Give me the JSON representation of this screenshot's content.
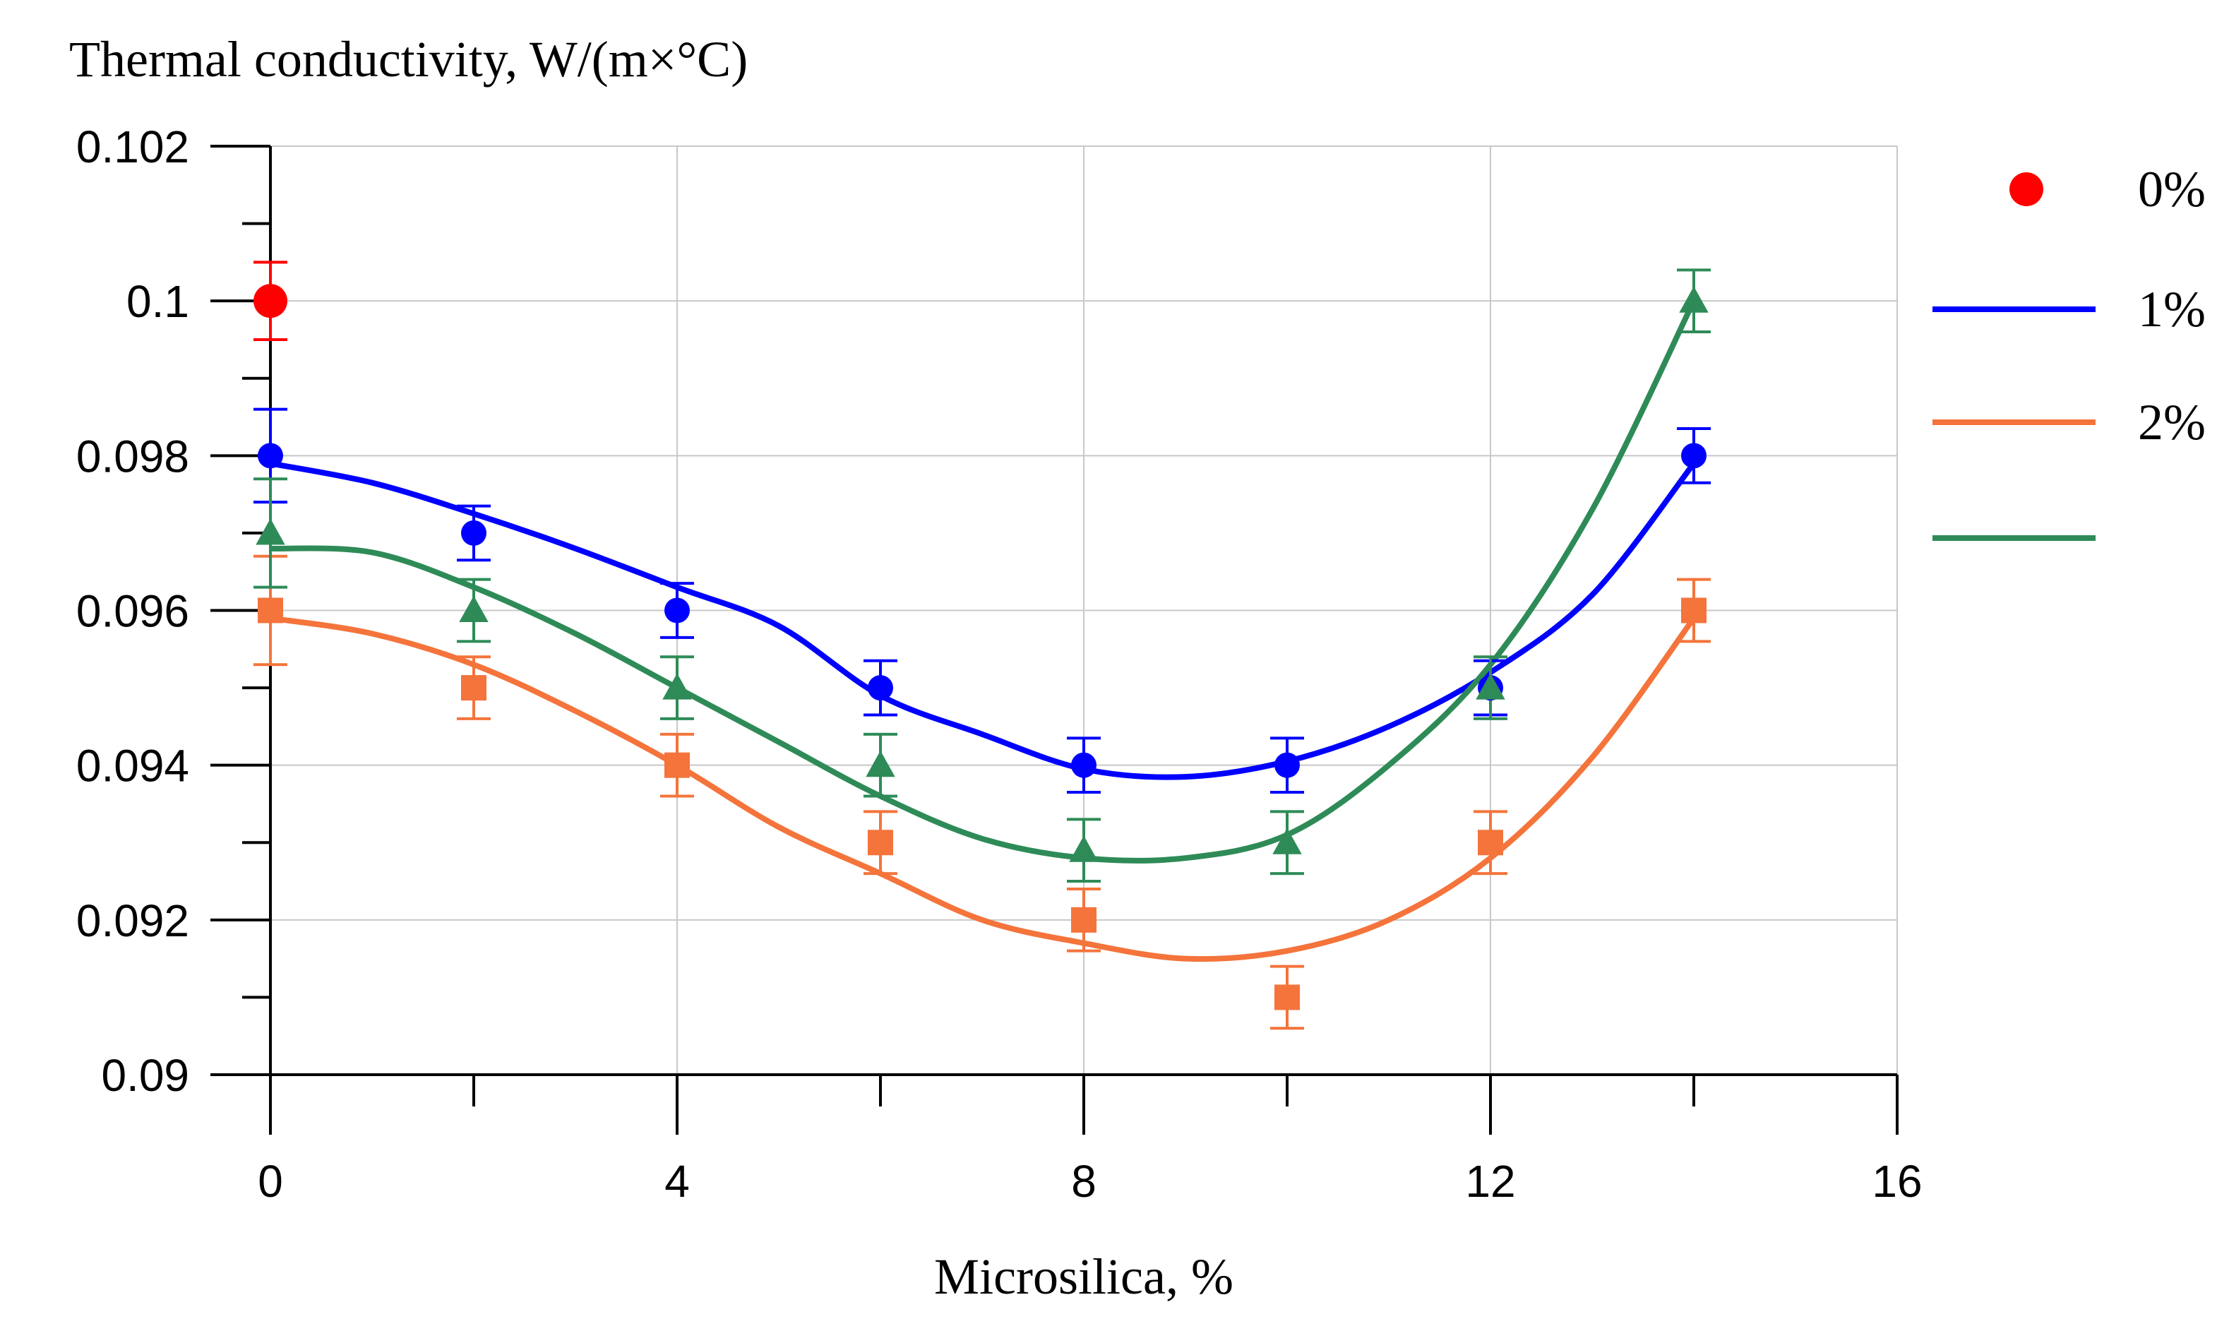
{
  "chart_data": {
    "type": "line",
    "ylabel": "Thermal conductivity, W/(m×°C)",
    "xlabel": "Microsilica, %",
    "xlim": [
      0,
      16
    ],
    "ylim": [
      0.09,
      0.102
    ],
    "x_ticks": [
      0,
      4,
      8,
      12,
      16
    ],
    "x_tick_labels": [
      "0",
      "4",
      "8",
      "12",
      "16"
    ],
    "x_minor_ticks": [
      2,
      6,
      10,
      14
    ],
    "y_ticks": [
      0.09,
      0.092,
      0.094,
      0.096,
      0.098,
      0.1,
      0.102
    ],
    "y_tick_labels": [
      "0.09",
      "0.092",
      "0.094",
      "0.096",
      "0.098",
      "0.1",
      "0.102"
    ],
    "y_minor_ticks": [
      0.091,
      0.093,
      0.095,
      0.097,
      0.099,
      0.101
    ],
    "grid": true,
    "legend_position": "right",
    "series": [
      {
        "name": "0%",
        "color": "#ff0000",
        "marker": "circle",
        "legend_style": "marker",
        "points": [
          {
            "x": 0,
            "y": 0.1,
            "err": 0.0005
          }
        ],
        "fit": []
      },
      {
        "name": "1%",
        "color": "#0000ff",
        "marker": "circle",
        "legend_style": "line",
        "points": [
          {
            "x": 0,
            "y": 0.098,
            "err": 0.0006
          },
          {
            "x": 2,
            "y": 0.097,
            "err": 0.00035
          },
          {
            "x": 4,
            "y": 0.096,
            "err": 0.00035
          },
          {
            "x": 6,
            "y": 0.095,
            "err": 0.00035
          },
          {
            "x": 8,
            "y": 0.094,
            "err": 0.00035
          },
          {
            "x": 10,
            "y": 0.094,
            "err": 0.00035
          },
          {
            "x": 12,
            "y": 0.095,
            "err": 0.00035
          },
          {
            "x": 14,
            "y": 0.098,
            "err": 0.00035
          }
        ],
        "fit": [
          [
            0,
            0.0979
          ],
          [
            1,
            0.09765
          ],
          [
            2,
            0.09725
          ],
          [
            3,
            0.0968
          ],
          [
            4,
            0.0963
          ],
          [
            5,
            0.0958
          ],
          [
            6,
            0.0949
          ],
          [
            7,
            0.0944
          ],
          [
            8,
            0.09395
          ],
          [
            9,
            0.09385
          ],
          [
            10,
            0.09405
          ],
          [
            11,
            0.0945
          ],
          [
            12,
            0.0952
          ],
          [
            13,
            0.0962
          ],
          [
            14,
            0.0979
          ]
        ]
      },
      {
        "name": "2%",
        "color": "#f4743b",
        "marker": "square",
        "legend_style": "line",
        "points": [
          {
            "x": 0,
            "y": 0.096,
            "err": 0.0007
          },
          {
            "x": 2,
            "y": 0.095,
            "err": 0.0004
          },
          {
            "x": 4,
            "y": 0.094,
            "err": 0.0004
          },
          {
            "x": 6,
            "y": 0.093,
            "err": 0.0004
          },
          {
            "x": 8,
            "y": 0.092,
            "err": 0.0004
          },
          {
            "x": 10,
            "y": 0.091,
            "err": 0.0004
          },
          {
            "x": 12,
            "y": 0.093,
            "err": 0.0004
          },
          {
            "x": 14,
            "y": 0.096,
            "err": 0.0004
          }
        ],
        "fit": [
          [
            0,
            0.0959
          ],
          [
            1,
            0.0957
          ],
          [
            2,
            0.0953
          ],
          [
            3,
            0.0947
          ],
          [
            4,
            0.094
          ],
          [
            5,
            0.0932
          ],
          [
            6,
            0.0926
          ],
          [
            7,
            0.092
          ],
          [
            8,
            0.0917
          ],
          [
            9,
            0.0915
          ],
          [
            10,
            0.0916
          ],
          [
            11,
            0.092
          ],
          [
            12,
            0.0928
          ],
          [
            13,
            0.0941
          ],
          [
            14,
            0.0959
          ]
        ]
      },
      {
        "name": "",
        "color": "#2e8b57",
        "marker": "triangle",
        "legend_style": "line",
        "points": [
          {
            "x": 0,
            "y": 0.097,
            "err": 0.0007
          },
          {
            "x": 2,
            "y": 0.096,
            "err": 0.0004
          },
          {
            "x": 4,
            "y": 0.095,
            "err": 0.0004
          },
          {
            "x": 6,
            "y": 0.094,
            "err": 0.0004
          },
          {
            "x": 8,
            "y": 0.0929,
            "err": 0.0004
          },
          {
            "x": 10,
            "y": 0.093,
            "err": 0.0004
          },
          {
            "x": 12,
            "y": 0.095,
            "err": 0.0004
          },
          {
            "x": 14,
            "y": 0.1,
            "err": 0.0004
          }
        ],
        "fit": [
          [
            0,
            0.0968
          ],
          [
            1,
            0.09675
          ],
          [
            2,
            0.0963
          ],
          [
            3,
            0.0957
          ],
          [
            4,
            0.095
          ],
          [
            5,
            0.0943
          ],
          [
            6,
            0.0936
          ],
          [
            7,
            0.09305
          ],
          [
            8,
            0.0928
          ],
          [
            9,
            0.0928
          ],
          [
            10,
            0.0931
          ],
          [
            11,
            0.094
          ],
          [
            12,
            0.0953
          ],
          [
            13,
            0.0973
          ],
          [
            14,
            0.1
          ]
        ]
      }
    ]
  }
}
